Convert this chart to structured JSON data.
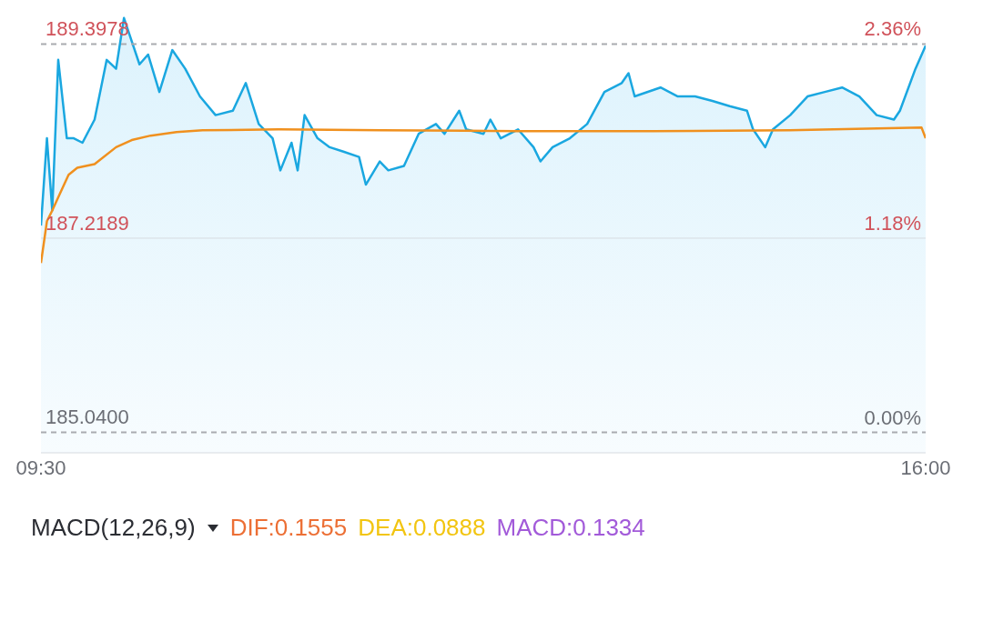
{
  "chart_data": [
    {
      "type": "area",
      "xlim": [
        9.5,
        16
      ],
      "xticks": [
        {
          "value": 9.5,
          "label": "09:30"
        },
        {
          "value": 16,
          "label": "16:00"
        }
      ],
      "ylim": [
        184.81,
        189.79
      ],
      "yticks": [
        {
          "value": 185.04,
          "label": "185.0400"
        },
        {
          "value": 187.2189,
          "label": "187.2189"
        },
        {
          "value": 189.3978,
          "label": "189.3978"
        }
      ],
      "y2lim": [
        -0.124,
        2.567
      ],
      "y2ticks": [
        {
          "value": 0,
          "label": "0.00%"
        },
        {
          "value": 1.18,
          "label": "1.18%"
        },
        {
          "value": 2.36,
          "label": "2.36%"
        }
      ],
      "legend": false,
      "marker": "none",
      "ref_lines": [
        {
          "axis": "y",
          "value": 189.3978,
          "color": "#a9abb0",
          "line_style": "dashed"
        },
        {
          "axis": "y",
          "value": 187.2189,
          "color": "#d6dbe0",
          "line_style": "solid"
        },
        {
          "axis": "y",
          "value": 185.04,
          "color": "#a9abb0",
          "line_style": "dashed"
        }
      ],
      "series": [
        {
          "type": "area",
          "color": "#1aa7e0",
          "x": [
            9.5,
            9.544,
            9.583,
            9.627,
            9.69,
            9.741,
            9.805,
            9.894,
            9.983,
            10.052,
            10.11,
            10.167,
            10.224,
            10.287,
            10.37,
            10.465,
            10.56,
            10.668,
            10.783,
            10.91,
            11.005,
            11.1,
            11.202,
            11.259,
            11.341,
            11.386,
            11.437,
            11.532,
            11.621,
            11.722,
            11.837,
            11.887,
            11.989,
            12.052,
            12.167,
            12.275,
            12.402,
            12.465,
            12.573,
            12.624,
            12.751,
            12.802,
            12.878,
            13.005,
            13.119,
            13.17,
            13.259,
            13.386,
            13.513,
            13.64,
            13.767,
            13.817,
            13.862,
            14.052,
            14.179,
            14.306,
            14.433,
            14.56,
            14.687,
            14.732,
            14.821,
            14.878,
            15.005,
            15.132,
            15.259,
            15.386,
            15.513,
            15.64,
            15.767,
            15.811,
            15.925,
            16
          ],
          "values": [
            187.36,
            188.34,
            187.53,
            189.22,
            188.34,
            188.34,
            188.29,
            188.55,
            189.22,
            189.12,
            189.69,
            189.43,
            189.17,
            189.28,
            188.86,
            189.33,
            189.12,
            188.81,
            188.6,
            188.65,
            188.96,
            188.5,
            188.34,
            187.98,
            188.29,
            187.98,
            188.6,
            188.34,
            188.24,
            188.19,
            188.13,
            187.82,
            188.08,
            187.98,
            188.03,
            188.39,
            188.5,
            188.39,
            188.65,
            188.44,
            188.39,
            188.55,
            188.34,
            188.44,
            188.24,
            188.08,
            188.24,
            188.34,
            188.5,
            188.86,
            188.96,
            189.07,
            188.81,
            188.91,
            188.81,
            188.81,
            188.76,
            188.7,
            188.65,
            188.44,
            188.24,
            188.44,
            188.6,
            188.81,
            188.86,
            188.91,
            188.81,
            188.6,
            188.55,
            188.65,
            189.12,
            189.38
          ]
        },
        {
          "type": "line",
          "color": "#f0901e",
          "x": [
            9.5,
            9.544,
            9.583,
            9.64,
            9.703,
            9.767,
            9.894,
            10.052,
            10.167,
            10.306,
            10.496,
            10.687,
            11.246,
            12.0,
            13.0,
            14.0,
            15.0,
            15.97,
            16
          ],
          "values": [
            186.94,
            187.41,
            187.53,
            187.72,
            187.93,
            188.01,
            188.05,
            188.24,
            188.32,
            188.37,
            188.41,
            188.43,
            188.44,
            188.43,
            188.42,
            188.42,
            188.43,
            188.46,
            188.34
          ]
        }
      ]
    },
    {
      "type": "other",
      "title": "MACD(12,26,9)",
      "annotations": [
        "DIF:0.1555",
        "DEA:0.0888",
        "MACD:0.1334"
      ]
    }
  ]
}
